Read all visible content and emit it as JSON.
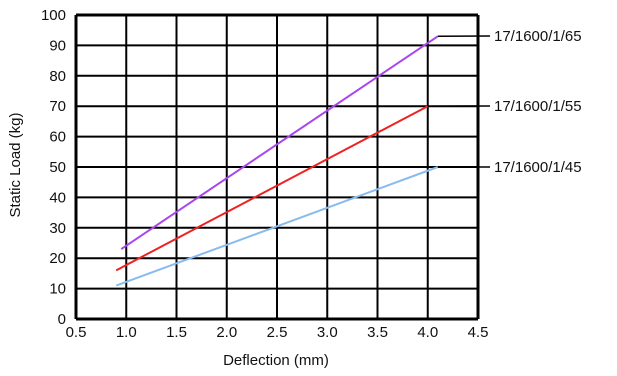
{
  "chart_data": {
    "type": "line",
    "title": "",
    "xlabel": "Deflection (mm)",
    "ylabel": "Static Load (kg)",
    "xlim": [
      0.5,
      4.5
    ],
    "ylim": [
      0,
      100
    ],
    "x_ticks": [
      "0.5",
      "1.0",
      "1.5",
      "2.0",
      "2.5",
      "3.0",
      "3.5",
      "4.0",
      "4.5"
    ],
    "y_ticks": [
      "0",
      "10",
      "20",
      "30",
      "40",
      "50",
      "60",
      "70",
      "80",
      "90",
      "100"
    ],
    "grid": true,
    "legend": "series labels at right end of lines",
    "series": [
      {
        "name": "17/1600/1/65",
        "color": "#aa44ee",
        "points": [
          [
            0.95,
            23
          ],
          [
            4.1,
            93
          ]
        ]
      },
      {
        "name": "17/1600/1/55",
        "color": "#ee2222",
        "points": [
          [
            0.9,
            16
          ],
          [
            4.0,
            70
          ]
        ]
      },
      {
        "name": "17/1600/1/45",
        "color": "#88bbee",
        "points": [
          [
            0.9,
            11
          ],
          [
            4.1,
            50
          ]
        ]
      }
    ]
  }
}
